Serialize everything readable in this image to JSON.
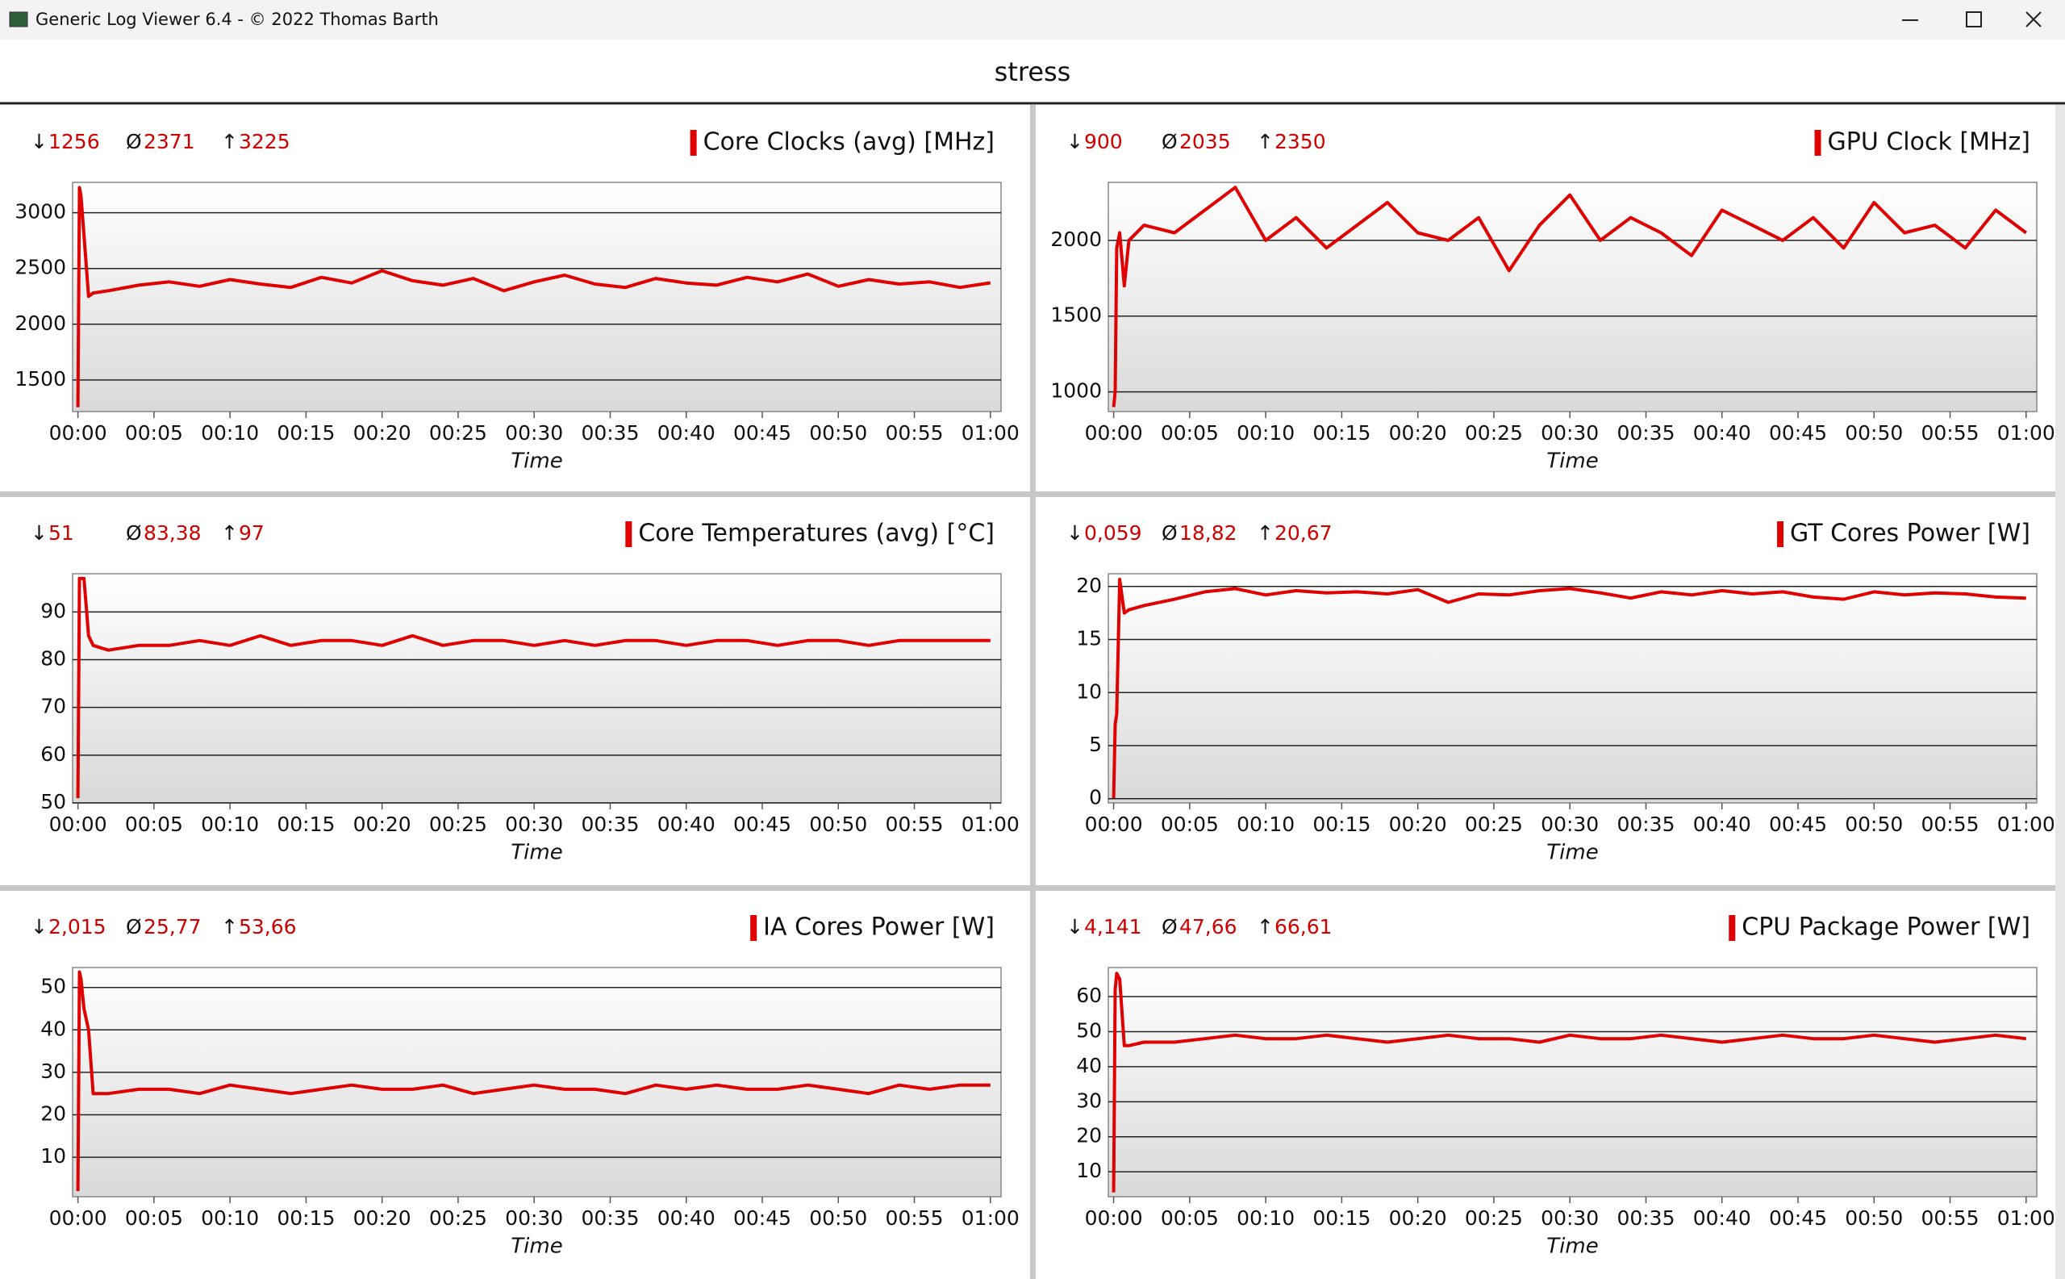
{
  "window_title": "Generic Log Viewer 6.4 - © 2022 Thomas Barth",
  "header": "stress",
  "chart_data": [
    {
      "type": "line",
      "title": "Core Clocks (avg) [MHz]",
      "xlabel": "Time",
      "color": "#e00000",
      "grid": true,
      "stats": [
        {
          "symbol": "↓",
          "value": "1256"
        },
        {
          "symbol": "Ø",
          "value": "2371"
        },
        {
          "symbol": "↑",
          "value": "3225"
        }
      ],
      "x": [
        0,
        0.1,
        0.2,
        0.4,
        0.7,
        1,
        2,
        4,
        6,
        8,
        10,
        12,
        14,
        16,
        18,
        20,
        22,
        24,
        26,
        28,
        30,
        32,
        34,
        36,
        38,
        40,
        42,
        44,
        46,
        48,
        50,
        52,
        54,
        56,
        58,
        60
      ],
      "values": [
        1256,
        3225,
        3150,
        2800,
        2250,
        2280,
        2300,
        2350,
        2380,
        2340,
        2400,
        2360,
        2330,
        2420,
        2370,
        2480,
        2390,
        2350,
        2410,
        2300,
        2380,
        2440,
        2360,
        2330,
        2410,
        2370,
        2350,
        2420,
        2380,
        2450,
        2340,
        2400,
        2360,
        2380,
        2330,
        2371
      ],
      "xlim": [
        -0.35,
        60.7
      ],
      "ylim": [
        1217,
        3272
      ],
      "yticks": [
        1500,
        2000,
        2500,
        3000
      ],
      "xticks": [
        {
          "value": 0,
          "label": "00:00"
        },
        {
          "value": 5,
          "label": "00:05"
        },
        {
          "value": 10,
          "label": "00:10"
        },
        {
          "value": 15,
          "label": "00:15"
        },
        {
          "value": 20,
          "label": "00:20"
        },
        {
          "value": 25,
          "label": "00:25"
        },
        {
          "value": 30,
          "label": "00:30"
        },
        {
          "value": 35,
          "label": "00:35"
        },
        {
          "value": 40,
          "label": "00:40"
        },
        {
          "value": 45,
          "label": "00:45"
        },
        {
          "value": 50,
          "label": "00:50"
        },
        {
          "value": 55,
          "label": "00:55"
        },
        {
          "value": 60,
          "label": "01:00"
        }
      ]
    },
    {
      "type": "line",
      "title": "GPU Clock [MHz]",
      "xlabel": "Time",
      "color": "#e00000",
      "grid": true,
      "stats": [
        {
          "symbol": "↓",
          "value": "900"
        },
        {
          "symbol": "Ø",
          "value": "2035"
        },
        {
          "symbol": "↑",
          "value": "2350"
        }
      ],
      "x": [
        0,
        0.1,
        0.2,
        0.4,
        0.7,
        1,
        2,
        4,
        6,
        8,
        10,
        12,
        14,
        16,
        18,
        20,
        22,
        24,
        26,
        28,
        30,
        32,
        34,
        36,
        38,
        40,
        42,
        44,
        46,
        48,
        50,
        52,
        54,
        56,
        58,
        60
      ],
      "values": [
        900,
        1000,
        1950,
        2050,
        1700,
        2000,
        2100,
        2050,
        2200,
        2350,
        2000,
        2150,
        1950,
        2100,
        2250,
        2050,
        2000,
        2150,
        1800,
        2100,
        2300,
        2000,
        2150,
        2050,
        1900,
        2200,
        2100,
        2000,
        2150,
        1950,
        2250,
        2050,
        2100,
        1950,
        2200,
        2050
      ],
      "xlim": [
        -0.35,
        60.7
      ],
      "ylim": [
        870,
        2383
      ],
      "yticks": [
        1000,
        1500,
        2000
      ],
      "xticks": [
        {
          "value": 0,
          "label": "00:00"
        },
        {
          "value": 5,
          "label": "00:05"
        },
        {
          "value": 10,
          "label": "00:10"
        },
        {
          "value": 15,
          "label": "00:15"
        },
        {
          "value": 20,
          "label": "00:20"
        },
        {
          "value": 25,
          "label": "00:25"
        },
        {
          "value": 30,
          "label": "00:30"
        },
        {
          "value": 35,
          "label": "00:35"
        },
        {
          "value": 40,
          "label": "00:40"
        },
        {
          "value": 45,
          "label": "00:45"
        },
        {
          "value": 50,
          "label": "00:50"
        },
        {
          "value": 55,
          "label": "00:55"
        },
        {
          "value": 60,
          "label": "01:00"
        }
      ]
    },
    {
      "type": "line",
      "title": "Core Temperatures (avg) [°C]",
      "xlabel": "Time",
      "color": "#e00000",
      "grid": true,
      "stats": [
        {
          "symbol": "↓",
          "value": "51"
        },
        {
          "symbol": "Ø",
          "value": "83,38"
        },
        {
          "symbol": "↑",
          "value": "97"
        }
      ],
      "x": [
        0,
        0.1,
        0.2,
        0.4,
        0.7,
        1,
        2,
        4,
        6,
        8,
        10,
        12,
        14,
        16,
        18,
        20,
        22,
        24,
        26,
        28,
        30,
        32,
        34,
        36,
        38,
        40,
        42,
        44,
        46,
        48,
        50,
        52,
        54,
        56,
        58,
        60
      ],
      "values": [
        51,
        97,
        97,
        97,
        85,
        83,
        82,
        83,
        83,
        84,
        83,
        85,
        83,
        84,
        84,
        83,
        85,
        83,
        84,
        84,
        83,
        84,
        83,
        84,
        84,
        83,
        84,
        84,
        83,
        84,
        84,
        83,
        84,
        84,
        84,
        84
      ],
      "xlim": [
        -0.35,
        60.7
      ],
      "ylim": [
        50,
        98
      ],
      "yticks": [
        50,
        60,
        70,
        80,
        90
      ],
      "xticks": [
        {
          "value": 0,
          "label": "00:00"
        },
        {
          "value": 5,
          "label": "00:05"
        },
        {
          "value": 10,
          "label": "00:10"
        },
        {
          "value": 15,
          "label": "00:15"
        },
        {
          "value": 20,
          "label": "00:20"
        },
        {
          "value": 25,
          "label": "00:25"
        },
        {
          "value": 30,
          "label": "00:30"
        },
        {
          "value": 35,
          "label": "00:35"
        },
        {
          "value": 40,
          "label": "00:40"
        },
        {
          "value": 45,
          "label": "00:45"
        },
        {
          "value": 50,
          "label": "00:50"
        },
        {
          "value": 55,
          "label": "00:55"
        },
        {
          "value": 60,
          "label": "01:00"
        }
      ]
    },
    {
      "type": "line",
      "title": "GT Cores Power [W]",
      "xlabel": "Time",
      "color": "#e00000",
      "grid": true,
      "stats": [
        {
          "symbol": "↓",
          "value": "0,059"
        },
        {
          "symbol": "Ø",
          "value": "18,82"
        },
        {
          "symbol": "↑",
          "value": "20,67"
        }
      ],
      "x": [
        0,
        0.1,
        0.2,
        0.4,
        0.7,
        1,
        2,
        4,
        6,
        8,
        10,
        12,
        14,
        16,
        18,
        20,
        22,
        24,
        26,
        28,
        30,
        32,
        34,
        36,
        38,
        40,
        42,
        44,
        46,
        48,
        50,
        52,
        54,
        56,
        58,
        60
      ],
      "values": [
        0.059,
        7,
        8,
        20.67,
        17.5,
        17.8,
        18.2,
        18.8,
        19.5,
        19.8,
        19.2,
        19.6,
        19.4,
        19.5,
        19.3,
        19.7,
        18.5,
        19.3,
        19.2,
        19.6,
        19.8,
        19.4,
        18.9,
        19.5,
        19.2,
        19.6,
        19.3,
        19.5,
        19.0,
        18.8,
        19.5,
        19.2,
        19.4,
        19.3,
        19.0,
        18.9
      ],
      "xlim": [
        -0.35,
        60.7
      ],
      "ylim": [
        -0.4,
        21.2
      ],
      "yticks": [
        0,
        5,
        10,
        15,
        20
      ],
      "xticks": [
        {
          "value": 0,
          "label": "00:00"
        },
        {
          "value": 5,
          "label": "00:05"
        },
        {
          "value": 10,
          "label": "00:10"
        },
        {
          "value": 15,
          "label": "00:15"
        },
        {
          "value": 20,
          "label": "00:20"
        },
        {
          "value": 25,
          "label": "00:25"
        },
        {
          "value": 30,
          "label": "00:30"
        },
        {
          "value": 35,
          "label": "00:35"
        },
        {
          "value": 40,
          "label": "00:40"
        },
        {
          "value": 45,
          "label": "00:45"
        },
        {
          "value": 50,
          "label": "00:50"
        },
        {
          "value": 55,
          "label": "00:55"
        },
        {
          "value": 60,
          "label": "01:00"
        }
      ]
    },
    {
      "type": "line",
      "title": "IA Cores Power [W]",
      "xlabel": "Time",
      "color": "#e00000",
      "grid": true,
      "stats": [
        {
          "symbol": "↓",
          "value": "2,015"
        },
        {
          "symbol": "Ø",
          "value": "25,77"
        },
        {
          "symbol": "↑",
          "value": "53,66"
        }
      ],
      "x": [
        0,
        0.1,
        0.2,
        0.4,
        0.7,
        1,
        2,
        4,
        6,
        8,
        10,
        12,
        14,
        16,
        18,
        20,
        22,
        24,
        26,
        28,
        30,
        32,
        34,
        36,
        38,
        40,
        42,
        44,
        46,
        48,
        50,
        52,
        54,
        56,
        58,
        60
      ],
      "values": [
        2.015,
        53.66,
        52,
        45,
        40,
        25,
        25,
        26,
        26,
        25,
        27,
        26,
        25,
        26,
        27,
        26,
        26,
        27,
        25,
        26,
        27,
        26,
        26,
        25,
        27,
        26,
        27,
        26,
        26,
        27,
        26,
        25,
        27,
        26,
        27,
        27
      ],
      "xlim": [
        -0.35,
        60.7
      ],
      "ylim": [
        0.7,
        54.7
      ],
      "yticks": [
        10,
        20,
        30,
        40,
        50
      ],
      "xticks": [
        {
          "value": 0,
          "label": "00:00"
        },
        {
          "value": 5,
          "label": "00:05"
        },
        {
          "value": 10,
          "label": "00:10"
        },
        {
          "value": 15,
          "label": "00:15"
        },
        {
          "value": 20,
          "label": "00:20"
        },
        {
          "value": 25,
          "label": "00:25"
        },
        {
          "value": 30,
          "label": "00:30"
        },
        {
          "value": 35,
          "label": "00:35"
        },
        {
          "value": 40,
          "label": "00:40"
        },
        {
          "value": 45,
          "label": "00:45"
        },
        {
          "value": 50,
          "label": "00:50"
        },
        {
          "value": 55,
          "label": "00:55"
        },
        {
          "value": 60,
          "label": "01:00"
        }
      ]
    },
    {
      "type": "line",
      "title": "CPU Package Power [W]",
      "xlabel": "Time",
      "color": "#e00000",
      "grid": true,
      "stats": [
        {
          "symbol": "↓",
          "value": "4,141"
        },
        {
          "symbol": "Ø",
          "value": "47,66"
        },
        {
          "symbol": "↑",
          "value": "66,61"
        }
      ],
      "x": [
        0,
        0.1,
        0.2,
        0.4,
        0.7,
        1,
        2,
        4,
        6,
        8,
        10,
        12,
        14,
        16,
        18,
        20,
        22,
        24,
        26,
        28,
        30,
        32,
        34,
        36,
        38,
        40,
        42,
        44,
        46,
        48,
        50,
        52,
        54,
        56,
        58,
        60
      ],
      "values": [
        4.141,
        62,
        66.61,
        65,
        46,
        46,
        47,
        47,
        48,
        49,
        48,
        48,
        49,
        48,
        47,
        48,
        49,
        48,
        48,
        47,
        49,
        48,
        48,
        49,
        48,
        47,
        48,
        49,
        48,
        48,
        49,
        48,
        47,
        48,
        49,
        48
      ],
      "xlim": [
        -0.35,
        60.7
      ],
      "ylim": [
        2.9,
        68.3
      ],
      "yticks": [
        10,
        20,
        30,
        40,
        50,
        60
      ],
      "xticks": [
        {
          "value": 0,
          "label": "00:00"
        },
        {
          "value": 5,
          "label": "00:05"
        },
        {
          "value": 10,
          "label": "00:10"
        },
        {
          "value": 15,
          "label": "00:15"
        },
        {
          "value": 20,
          "label": "00:20"
        },
        {
          "value": 25,
          "label": "00:25"
        },
        {
          "value": 30,
          "label": "00:30"
        },
        {
          "value": 35,
          "label": "00:35"
        },
        {
          "value": 40,
          "label": "00:40"
        },
        {
          "value": 45,
          "label": "00:45"
        },
        {
          "value": 50,
          "label": "00:50"
        },
        {
          "value": 55,
          "label": "00:55"
        },
        {
          "value": 60,
          "label": "01:00"
        }
      ]
    }
  ]
}
